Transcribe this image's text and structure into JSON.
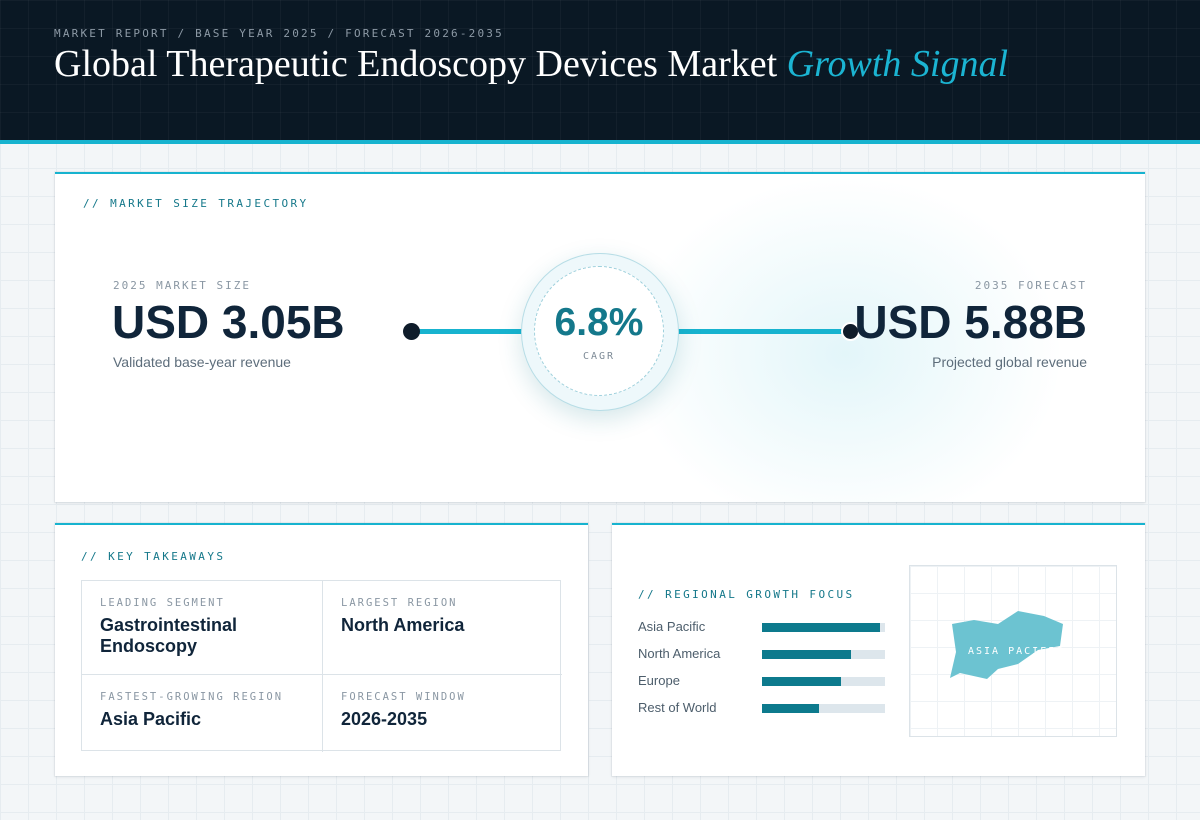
{
  "header": {
    "eyebrow": "MARKET REPORT / BASE YEAR 2025 / FORECAST 2026-2035",
    "title_main": "Global Therapeutic Endoscopy Devices Market",
    "title_accent": "Growth Signal"
  },
  "trajectory": {
    "section_label": "// MARKET SIZE TRAJECTORY",
    "start": {
      "label": "2025 MARKET SIZE",
      "value": "USD 3.05B",
      "sub": "Validated base-year revenue"
    },
    "cagr": {
      "value": "6.8%",
      "label": "CAGR"
    },
    "end": {
      "label": "2035 FORECAST",
      "value": "USD 5.88B",
      "sub": "Projected global revenue"
    }
  },
  "takeaways": {
    "section_label": "// KEY TAKEAWAYS",
    "items": [
      {
        "label": "LEADING SEGMENT",
        "value": "Gastrointestinal Endoscopy"
      },
      {
        "label": "LARGEST REGION",
        "value": "North America"
      },
      {
        "label": "FASTEST-GROWING REGION",
        "value": "Asia Pacific"
      },
      {
        "label": "FORECAST WINDOW",
        "value": "2026-2035"
      }
    ]
  },
  "regional": {
    "section_label": "// REGIONAL GROWTH FOCUS",
    "bars": [
      {
        "name": "Asia Pacific",
        "level": 0.96
      },
      {
        "name": "North America",
        "level": 0.72
      },
      {
        "name": "Europe",
        "level": 0.64
      },
      {
        "name": "Rest of World",
        "level": 0.46
      }
    ],
    "map_label": "ASIA PACIFIC"
  },
  "colors": {
    "accent": "#17b3cf",
    "accent_dark": "#14788b",
    "header_bg": "#0a1824",
    "bar_fill": "#0d7a8d",
    "bar_track": "#dde6ec",
    "map_shape": "#6cc3d1"
  }
}
